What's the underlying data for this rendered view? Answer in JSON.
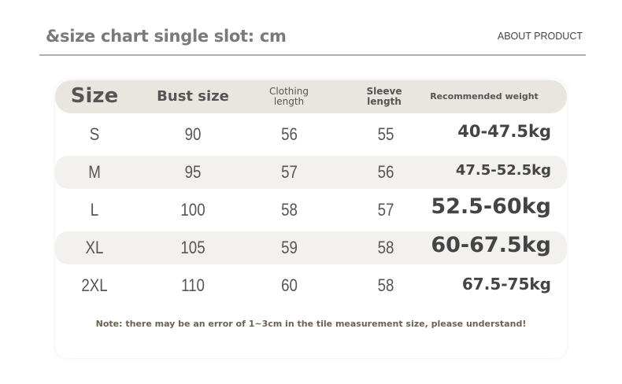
{
  "header": {
    "title": "&size chart single slot: cm",
    "about": "ABOUT PRODUCT"
  },
  "table": {
    "columns": [
      "Size",
      "Bust size",
      "Clothing length",
      "Sleeve length",
      "Recommended weight"
    ],
    "rows": [
      {
        "size": "S",
        "bust": "90",
        "clothing": "56",
        "sleeve": "55",
        "weight": "40-47.5kg"
      },
      {
        "size": "M",
        "bust": "95",
        "clothing": "57",
        "sleeve": "56",
        "weight": "47.5-52.5kg"
      },
      {
        "size": "L",
        "bust": "100",
        "clothing": "58",
        "sleeve": "57",
        "weight": "52.5-60kg"
      },
      {
        "size": "XL",
        "bust": "105",
        "clothing": "59",
        "sleeve": "58",
        "weight": "60-67.5kg"
      },
      {
        "size": "2XL",
        "bust": "110",
        "clothing": "60",
        "sleeve": "58",
        "weight": "67.5-75kg"
      }
    ]
  },
  "note": "Note: there may be an error of 1~3cm in the tile measurement size, please understand!"
}
